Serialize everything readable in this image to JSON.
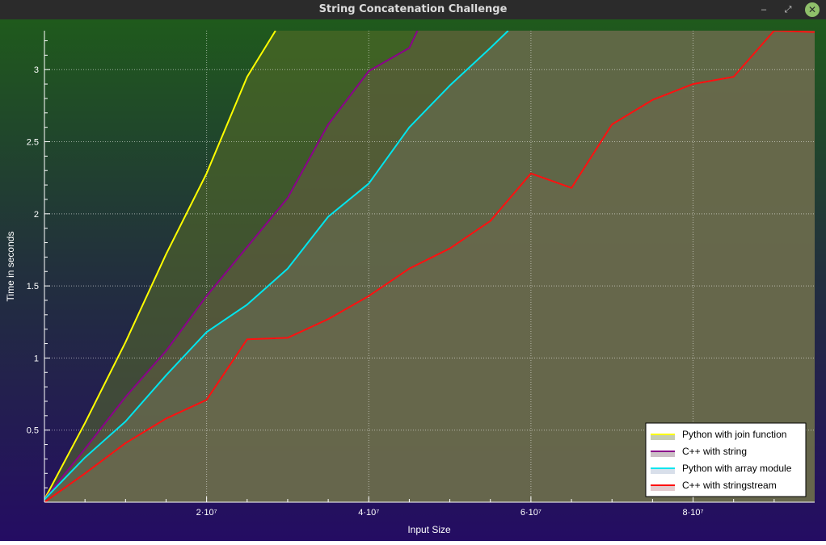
{
  "window": {
    "title": "String Concatenation Challenge",
    "controls": {
      "minimize": "–",
      "maximize": "⤢",
      "close": "✕"
    }
  },
  "chart_data": {
    "type": "area",
    "title": "",
    "xlabel": "Input Size",
    "ylabel": "Time in seconds",
    "xlim": [
      0,
      95000000
    ],
    "ylim": [
      0,
      3.27
    ],
    "grid": true,
    "legend_position": "bottom-right",
    "x_ticks": [
      {
        "value": 20000000,
        "label": "2·10⁷"
      },
      {
        "value": 40000000,
        "label": "4·10⁷"
      },
      {
        "value": 60000000,
        "label": "6·10⁷"
      },
      {
        "value": 80000000,
        "label": "8·10⁷"
      }
    ],
    "y_ticks": [
      {
        "value": 0.5,
        "label": "0.5"
      },
      {
        "value": 1,
        "label": "1"
      },
      {
        "value": 1.5,
        "label": "1.5"
      },
      {
        "value": 2,
        "label": "2"
      },
      {
        "value": 2.5,
        "label": "2.5"
      },
      {
        "value": 3,
        "label": "3"
      }
    ],
    "series": [
      {
        "name": "Python with join function",
        "color": "#ffff00",
        "fill": "#5a6e28",
        "x": [
          0,
          5000000,
          10000000,
          15000000,
          20000000,
          25000000,
          28500000
        ],
        "y": [
          0.02,
          0.55,
          1.11,
          1.72,
          2.28,
          2.95,
          3.27
        ]
      },
      {
        "name": "C++ with string",
        "color": "#8b008b",
        "fill": "#6e4a5c",
        "x": [
          0,
          5000000,
          10000000,
          15000000,
          20000000,
          25000000,
          30000000,
          35000000,
          40000000,
          45000000,
          46000000
        ],
        "y": [
          0.02,
          0.37,
          0.73,
          1.05,
          1.43,
          1.77,
          2.11,
          2.62,
          2.99,
          3.15,
          3.27
        ]
      },
      {
        "name": "Python with array module",
        "color": "#00e5ee",
        "fill": "#8fa3c2",
        "x": [
          0,
          5000000,
          10000000,
          15000000,
          20000000,
          25000000,
          30000000,
          35000000,
          40000000,
          45000000,
          50000000,
          55000000,
          57200000
        ],
        "y": [
          0.02,
          0.31,
          0.56,
          0.88,
          1.18,
          1.37,
          1.62,
          1.98,
          2.21,
          2.6,
          2.89,
          3.15,
          3.27
        ]
      },
      {
        "name": "C++ with stringstream",
        "color": "#ff1010",
        "fill": "#b06a72",
        "x": [
          0,
          5000000,
          10000000,
          15000000,
          20000000,
          25000000,
          30000000,
          35000000,
          40000000,
          45000000,
          50000000,
          55000000,
          60000000,
          65000000,
          70000000,
          75000000,
          80000000,
          85000000,
          90000000,
          95000000
        ],
        "y": [
          0.0,
          0.2,
          0.41,
          0.58,
          0.71,
          1.13,
          1.14,
          1.27,
          1.43,
          1.62,
          1.76,
          1.95,
          2.28,
          2.18,
          2.62,
          2.79,
          2.9,
          2.95,
          3.27,
          3.26
        ]
      }
    ]
  }
}
